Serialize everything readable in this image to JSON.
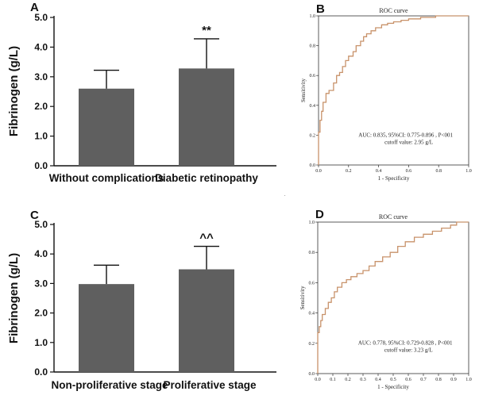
{
  "figure_dot": ".",
  "chart_data": [
    {
      "panel": "A",
      "type": "bar",
      "categories": [
        "Without complications",
        "Diabetic retinopathy"
      ],
      "values": [
        2.6,
        3.28
      ],
      "error_upper": [
        3.22,
        4.28
      ],
      "significance": [
        "",
        "**"
      ],
      "ylabel": "Fibrinogen (g/L)",
      "ylim": [
        0,
        5
      ],
      "yticks": [
        "0.0",
        "1.0",
        "2.0",
        "3.0",
        "4.0",
        "5.0"
      ],
      "bar_color": "#5f5f5f"
    },
    {
      "panel": "B",
      "type": "line",
      "title": "ROC curve",
      "xlabel": "1 - Specificity",
      "ylabel": "Sensitivity",
      "xlim": [
        0,
        1
      ],
      "ylim": [
        0,
        1
      ],
      "xticks": [
        "0.0",
        "0.2",
        "0.4",
        "0.6",
        "0.8",
        "1.0"
      ],
      "yticks": [
        "0.0",
        "0.2",
        "0.4",
        "0.6",
        "0.8",
        "1.0"
      ],
      "annotation": [
        "AUC: 0.835, 95%CI:  0.775-0.896 , P<001",
        "cutoff value: 2.95 g/L"
      ],
      "line_color": "#c8926a",
      "x": [
        0,
        0,
        0.01,
        0.01,
        0.02,
        0.02,
        0.03,
        0.03,
        0.05,
        0.05,
        0.07,
        0.07,
        0.1,
        0.1,
        0.12,
        0.12,
        0.14,
        0.14,
        0.16,
        0.16,
        0.18,
        0.18,
        0.2,
        0.2,
        0.23,
        0.23,
        0.25,
        0.25,
        0.28,
        0.28,
        0.3,
        0.3,
        0.32,
        0.32,
        0.35,
        0.35,
        0.38,
        0.38,
        0.42,
        0.42,
        0.46,
        0.46,
        0.5,
        0.5,
        0.55,
        0.55,
        0.6,
        0.6,
        0.68,
        0.68,
        0.78,
        0.78,
        1.0
      ],
      "y": [
        0,
        0.22,
        0.22,
        0.3,
        0.3,
        0.36,
        0.36,
        0.42,
        0.42,
        0.48,
        0.48,
        0.5,
        0.5,
        0.55,
        0.55,
        0.6,
        0.6,
        0.62,
        0.62,
        0.66,
        0.66,
        0.7,
        0.7,
        0.73,
        0.73,
        0.76,
        0.76,
        0.8,
        0.8,
        0.83,
        0.83,
        0.86,
        0.86,
        0.88,
        0.88,
        0.9,
        0.9,
        0.92,
        0.92,
        0.94,
        0.94,
        0.95,
        0.95,
        0.96,
        0.96,
        0.97,
        0.97,
        0.98,
        0.98,
        0.99,
        0.99,
        1.0,
        1.0
      ]
    },
    {
      "panel": "C",
      "type": "bar",
      "categories": [
        "Non-proliferative stage",
        "Proliferative stage"
      ],
      "values": [
        2.98,
        3.48
      ],
      "error_upper": [
        3.62,
        4.26
      ],
      "significance": [
        "",
        "^^"
      ],
      "ylabel": "Fibrinogen (g/L)",
      "ylim": [
        0,
        5
      ],
      "yticks": [
        "0.0",
        "1.0",
        "2.0",
        "3.0",
        "4.0",
        "5.0"
      ],
      "bar_color": "#5f5f5f"
    },
    {
      "panel": "D",
      "type": "line",
      "title": "ROC curve",
      "xlabel": "1 - Specificity",
      "ylabel": "Sensitivity",
      "xlim": [
        0,
        1
      ],
      "ylim": [
        0,
        1
      ],
      "xticks": [
        "0.0",
        "0.1",
        "0.2",
        "0.3",
        "0.4",
        "0.5",
        "0.6",
        "0.7",
        "0.8",
        "0.9",
        "1.0"
      ],
      "yticks": [
        "0.0",
        "0.2",
        "0.4",
        "0.6",
        "0.8",
        "1.0"
      ],
      "annotation": [
        "AUC: 0.778, 95%CI:  0.729-0.828 , P<001",
        "cutoff value: 3.23 g/L"
      ],
      "line_color": "#c8926a",
      "x": [
        0,
        0.0,
        0.01,
        0.01,
        0.02,
        0.02,
        0.03,
        0.03,
        0.05,
        0.05,
        0.07,
        0.07,
        0.09,
        0.09,
        0.11,
        0.11,
        0.13,
        0.13,
        0.16,
        0.16,
        0.19,
        0.19,
        0.22,
        0.22,
        0.26,
        0.26,
        0.3,
        0.3,
        0.34,
        0.34,
        0.38,
        0.38,
        0.43,
        0.43,
        0.48,
        0.48,
        0.53,
        0.53,
        0.58,
        0.58,
        0.64,
        0.64,
        0.7,
        0.7,
        0.76,
        0.76,
        0.82,
        0.82,
        0.88,
        0.88,
        0.92,
        0.92,
        1.0
      ],
      "y": [
        0,
        0.27,
        0.27,
        0.31,
        0.31,
        0.35,
        0.35,
        0.39,
        0.39,
        0.43,
        0.43,
        0.47,
        0.47,
        0.5,
        0.5,
        0.54,
        0.54,
        0.57,
        0.57,
        0.6,
        0.6,
        0.62,
        0.62,
        0.64,
        0.64,
        0.66,
        0.66,
        0.68,
        0.68,
        0.71,
        0.71,
        0.74,
        0.74,
        0.77,
        0.77,
        0.8,
        0.8,
        0.84,
        0.84,
        0.87,
        0.87,
        0.9,
        0.9,
        0.92,
        0.92,
        0.94,
        0.94,
        0.96,
        0.96,
        0.98,
        0.98,
        1.0,
        1.0
      ]
    }
  ]
}
